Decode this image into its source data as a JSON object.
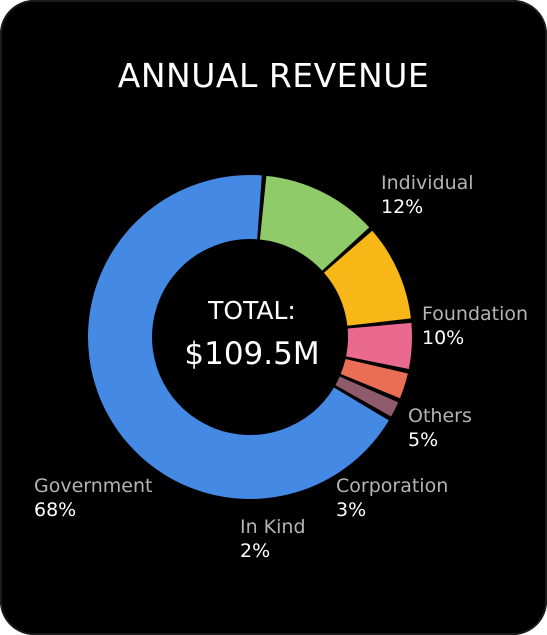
{
  "chart_data": {
    "type": "pie",
    "title": "ANNUAL REVENUE",
    "center": {
      "label": "TOTAL:",
      "value": "$109.5M"
    },
    "slices": [
      {
        "name": "Individual",
        "value": 12,
        "label": "12%",
        "color": "#8fcb69"
      },
      {
        "name": "Foundation",
        "value": 10,
        "label": "10%",
        "color": "#f7b817"
      },
      {
        "name": "Others",
        "value": 5,
        "label": "5%",
        "color": "#e96a8e"
      },
      {
        "name": "Corporation",
        "value": 3,
        "label": "3%",
        "color": "#e96e55"
      },
      {
        "name": "In Kind",
        "value": 2,
        "label": "2%",
        "color": "#8f5a6c"
      },
      {
        "name": "Government",
        "value": 68,
        "label": "68%",
        "color": "#4489e4"
      }
    ]
  }
}
